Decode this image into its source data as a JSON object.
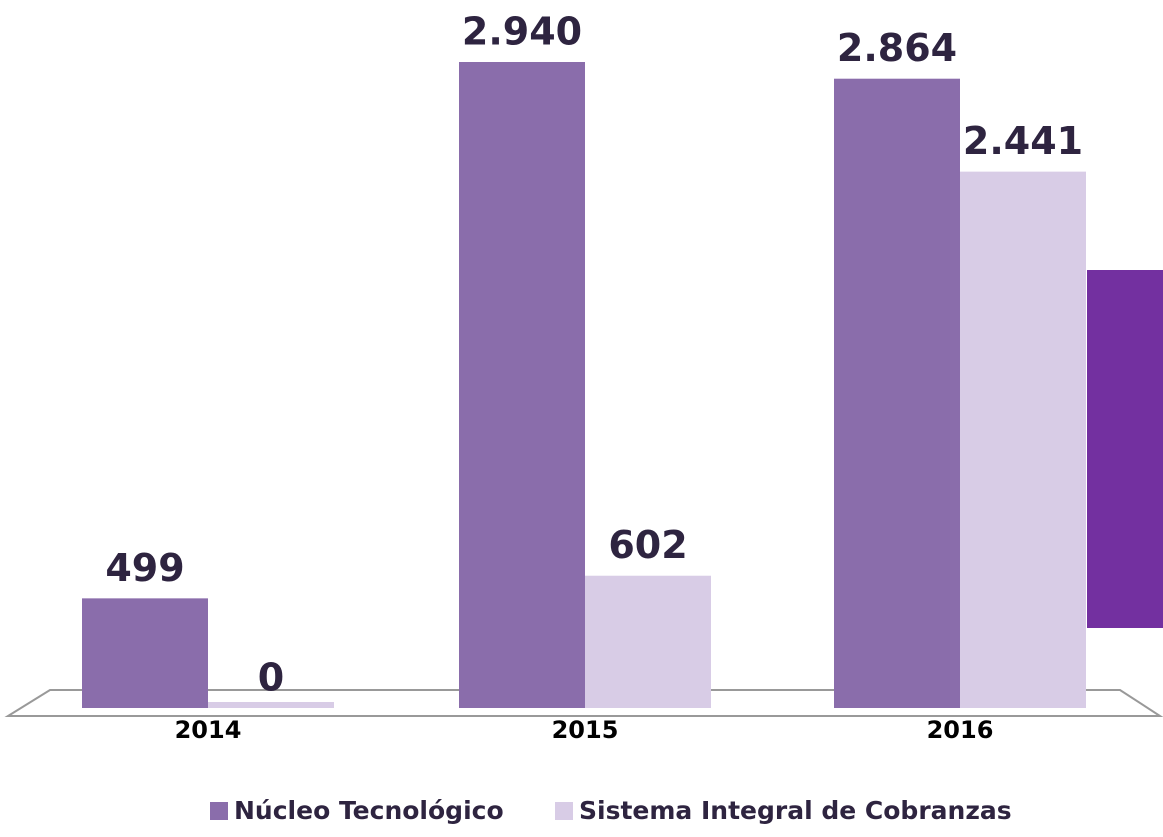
{
  "chart_data": {
    "type": "bar",
    "categories": [
      "2014",
      "2015",
      "2016"
    ],
    "series": [
      {
        "name": "Núcleo Tecnológico",
        "color": "#8a6dab",
        "values": [
          499,
          2940,
          2864
        ],
        "value_labels": [
          "499",
          "2.940",
          "2.864"
        ]
      },
      {
        "name": "Sistema Integral de Cobranzas",
        "color": "#d8cce6",
        "values": [
          0,
          602,
          2441
        ],
        "value_labels": [
          "0",
          "602",
          "2.441"
        ]
      }
    ]
  }
}
